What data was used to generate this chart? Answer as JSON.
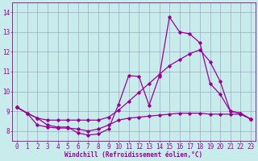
{
  "title": "",
  "xlabel": "Windchill (Refroidissement éolien,°C)",
  "ylabel": "",
  "bg_color": "#c8ecec",
  "line_color": "#990099",
  "grid_color": "#9999bb",
  "xlim": [
    -0.5,
    23.5
  ],
  "ylim": [
    7.5,
    14.5
  ],
  "xticks": [
    0,
    1,
    2,
    3,
    4,
    5,
    6,
    7,
    8,
    9,
    10,
    11,
    12,
    13,
    14,
    15,
    16,
    17,
    18,
    19,
    20,
    21,
    22,
    23
  ],
  "yticks": [
    8,
    9,
    10,
    11,
    12,
    13,
    14
  ],
  "line1_x": [
    0,
    1,
    2,
    3,
    4,
    5,
    6,
    7,
    8,
    9,
    10,
    11,
    12,
    13,
    14,
    15,
    16,
    17,
    18,
    19,
    20,
    21,
    22,
    23
  ],
  "line1_y": [
    9.2,
    8.9,
    8.65,
    8.3,
    8.2,
    8.2,
    7.9,
    7.8,
    7.85,
    8.1,
    9.35,
    10.8,
    10.75,
    9.3,
    10.75,
    13.75,
    13.0,
    12.9,
    12.45,
    10.4,
    9.85,
    9.0,
    8.9,
    8.6
  ],
  "line2_x": [
    0,
    1,
    2,
    3,
    4,
    5,
    6,
    7,
    8,
    9,
    10,
    11,
    12,
    13,
    14,
    15,
    16,
    17,
    18,
    19,
    20,
    21,
    22,
    23
  ],
  "line2_y": [
    9.2,
    8.9,
    8.65,
    8.55,
    8.55,
    8.55,
    8.55,
    8.55,
    8.55,
    8.7,
    9.05,
    9.5,
    9.95,
    10.4,
    10.85,
    11.3,
    11.6,
    11.9,
    12.1,
    11.5,
    10.5,
    9.0,
    8.9,
    8.6
  ],
  "line3_x": [
    0,
    1,
    2,
    3,
    4,
    5,
    6,
    7,
    8,
    9,
    10,
    11,
    12,
    13,
    14,
    15,
    16,
    17,
    18,
    19,
    20,
    21,
    22,
    23
  ],
  "line3_y": [
    9.2,
    8.9,
    8.3,
    8.2,
    8.15,
    8.15,
    8.1,
    8.0,
    8.1,
    8.3,
    8.55,
    8.65,
    8.7,
    8.75,
    8.8,
    8.85,
    8.9,
    8.9,
    8.9,
    8.85,
    8.85,
    8.85,
    8.85,
    8.6
  ],
  "fontsize_label": 5.5,
  "fontsize_tick": 5.5
}
